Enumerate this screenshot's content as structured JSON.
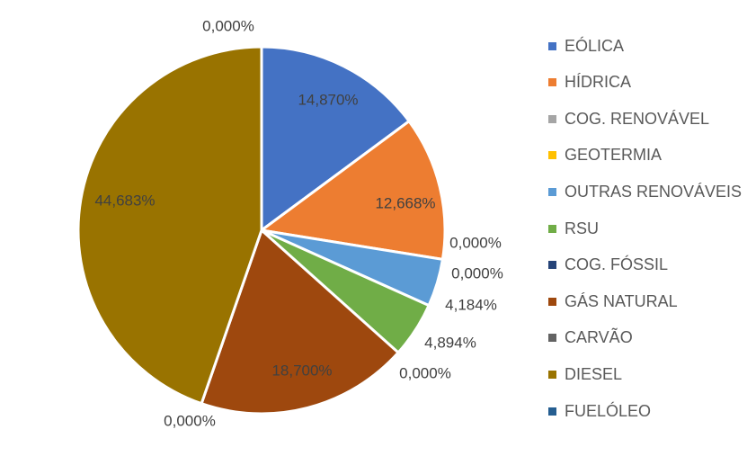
{
  "chart_data": {
    "type": "pie",
    "title": "",
    "start_angle_deg": 0,
    "direction": "clockwise",
    "legend_position": "right",
    "slices": [
      {
        "name": "EÓLICA",
        "value": 14.87,
        "label": "14,870%",
        "color": "#4472C4"
      },
      {
        "name": "HÍDRICA",
        "value": 12.668,
        "label": "12,668%",
        "color": "#ED7D31"
      },
      {
        "name": "COG. RENOVÁVEL",
        "value": 0.0,
        "label": "0,000%",
        "color": "#A5A5A5"
      },
      {
        "name": "GEOTERMIA",
        "value": 0.0,
        "label": "0,000%",
        "color": "#FFC000"
      },
      {
        "name": "OUTRAS RENOVÁVEIS",
        "value": 4.184,
        "label": "4,184%",
        "color": "#5B9BD5"
      },
      {
        "name": "RSU",
        "value": 4.894,
        "label": "4,894%",
        "color": "#70AD47"
      },
      {
        "name": "COG. FÓSSIL",
        "value": 0.0,
        "label": "0,000%",
        "color": "#264478"
      },
      {
        "name": "GÁS NATURAL",
        "value": 18.7,
        "label": "18,700%",
        "color": "#9E480E"
      },
      {
        "name": "CARVÃO",
        "value": 0.0,
        "label": "0,000%",
        "color": "#636363"
      },
      {
        "name": "DIESEL",
        "value": 44.683,
        "label": "44,683%",
        "color": "#997300"
      },
      {
        "name": "FUELÓLEO",
        "value": 0.0,
        "label": "0,000%",
        "color": "#255E91"
      }
    ]
  }
}
